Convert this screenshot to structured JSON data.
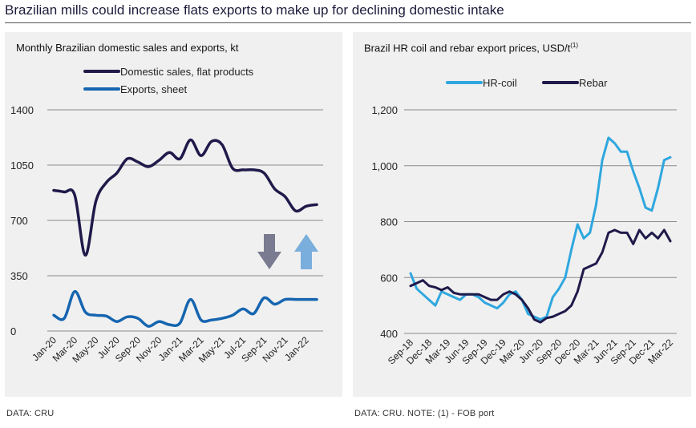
{
  "headline": "Brazilian mills could increase flats exports to make up for declining domestic intake",
  "colors": {
    "navy": "#1f1a4a",
    "blue": "#1665b0",
    "lightblue": "#2fa7df",
    "arrow_down": "#7a7a90",
    "arrow_up": "#7aaedc",
    "grid": "#8a8a8a",
    "panel_bg": "#f0f0f0"
  },
  "left_panel": {
    "source": "DATA: CRU"
  },
  "right_panel": {
    "source": "DATA: CRU. NOTE: (1) - FOB port"
  },
  "chart_data": [
    {
      "type": "line",
      "title": "Monthly Brazilian domestic sales and exports, kt",
      "xlabel": "",
      "ylabel": "",
      "ylim": [
        0,
        1400
      ],
      "yticks": [
        "0",
        "350",
        "700",
        "1050",
        "1400"
      ],
      "ytick_values": [
        0,
        350,
        700,
        1050,
        1400
      ],
      "categories": [
        "Jan-20",
        "Feb-20",
        "Mar-20",
        "Apr-20",
        "May-20",
        "Jun-20",
        "Jul-20",
        "Aug-20",
        "Sep-20",
        "Oct-20",
        "Nov-20",
        "Dec-20",
        "Jan-21",
        "Feb-21",
        "Mar-21",
        "Apr-21",
        "May-21",
        "Jun-21",
        "Jul-21",
        "Aug-21",
        "Sep-21",
        "Oct-21",
        "Nov-21",
        "Dec-21",
        "Jan-22",
        "Feb-22"
      ],
      "tick_labels": [
        "Jan-20",
        "Mar-20",
        "May-20",
        "Jul-20",
        "Sep-20",
        "Nov-20",
        "Jan-21",
        "Mar-21",
        "May-21",
        "Jul-21",
        "Sep-21",
        "Nov-21",
        "Jan-22"
      ],
      "tick_indices": [
        0,
        2,
        4,
        6,
        8,
        10,
        12,
        14,
        16,
        18,
        20,
        22,
        24
      ],
      "annotations": [
        "down-arrow",
        "up-arrow"
      ],
      "series": [
        {
          "name": "Domestic sales, flat products",
          "color": "#1f1a4a",
          "values": [
            890,
            880,
            860,
            480,
            820,
            940,
            1000,
            1090,
            1070,
            1040,
            1080,
            1130,
            1090,
            1210,
            1110,
            1200,
            1180,
            1030,
            1020,
            1020,
            1000,
            900,
            850,
            760,
            790,
            800
          ]
        },
        {
          "name": "Exports, sheet",
          "color": "#1665b0",
          "values": [
            100,
            80,
            250,
            120,
            100,
            95,
            60,
            90,
            80,
            30,
            60,
            40,
            50,
            200,
            70,
            70,
            80,
            100,
            140,
            110,
            210,
            170,
            200,
            200,
            200,
            200
          ]
        }
      ]
    },
    {
      "type": "line",
      "title": "Brazil HR coil and rebar export prices, USD/t",
      "title_sup": "(1)",
      "xlabel": "",
      "ylabel": "",
      "ylim": [
        400,
        1200
      ],
      "yticks": [
        "400",
        "600",
        "800",
        "1,000",
        "1,200"
      ],
      "ytick_values": [
        400,
        600,
        800,
        1000,
        1200
      ],
      "categories": [
        "Sep-18",
        "Oct-18",
        "Nov-18",
        "Dec-18",
        "Jan-19",
        "Feb-19",
        "Mar-19",
        "Apr-19",
        "May-19",
        "Jun-19",
        "Jul-19",
        "Aug-19",
        "Sep-19",
        "Oct-19",
        "Nov-19",
        "Dec-19",
        "Jan-20",
        "Feb-20",
        "Mar-20",
        "Apr-20",
        "May-20",
        "Jun-20",
        "Jul-20",
        "Aug-20",
        "Sep-20",
        "Oct-20",
        "Nov-20",
        "Dec-20",
        "Jan-21",
        "Feb-21",
        "Mar-21",
        "Apr-21",
        "May-21",
        "Jun-21",
        "Jul-21",
        "Aug-21",
        "Sep-21",
        "Oct-21",
        "Nov-21",
        "Dec-21",
        "Jan-22",
        "Feb-22",
        "Mar-22"
      ],
      "tick_labels": [
        "Sep-18",
        "Dec-18",
        "Mar-19",
        "Jun-19",
        "Sep-19",
        "Dec-19",
        "Mar-20",
        "Jun-20",
        "Sep-20",
        "Dec-20",
        "Mar-21",
        "Jun-21",
        "Sep-21",
        "Dec-21",
        "Mar-22"
      ],
      "tick_indices": [
        0,
        3,
        6,
        9,
        12,
        15,
        18,
        21,
        24,
        27,
        30,
        33,
        36,
        39,
        42
      ],
      "series": [
        {
          "name": "HR-coil",
          "color": "#2fa7df",
          "values": [
            615,
            560,
            540,
            520,
            500,
            550,
            540,
            530,
            520,
            540,
            540,
            530,
            510,
            500,
            490,
            510,
            540,
            550,
            520,
            470,
            460,
            450,
            460,
            530,
            560,
            600,
            700,
            790,
            740,
            760,
            860,
            1020,
            1100,
            1080,
            1050,
            1050,
            980,
            920,
            850,
            840,
            920,
            1020,
            1030
          ]
        },
        {
          "name": "Rebar",
          "color": "#1f1a4a",
          "values": [
            570,
            580,
            590,
            570,
            565,
            555,
            565,
            545,
            540,
            540,
            540,
            540,
            530,
            520,
            520,
            540,
            550,
            540,
            520,
            490,
            450,
            440,
            455,
            460,
            470,
            480,
            500,
            550,
            630,
            640,
            650,
            690,
            760,
            770,
            760,
            760,
            720,
            770,
            740,
            760,
            740,
            770,
            730
          ]
        }
      ]
    }
  ]
}
